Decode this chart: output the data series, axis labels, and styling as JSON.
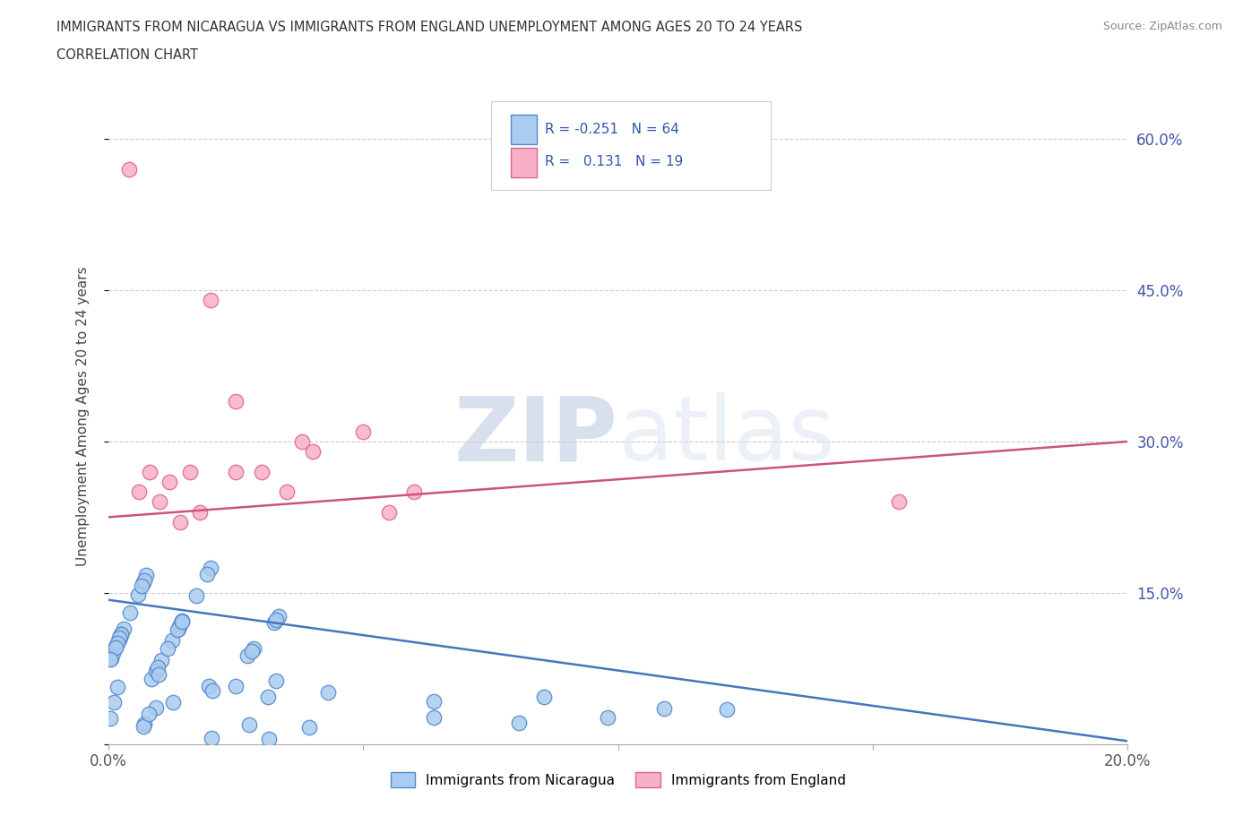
{
  "title_line1": "IMMIGRANTS FROM NICARAGUA VS IMMIGRANTS FROM ENGLAND UNEMPLOYMENT AMONG AGES 20 TO 24 YEARS",
  "title_line2": "CORRELATION CHART",
  "source": "Source: ZipAtlas.com",
  "ylabel": "Unemployment Among Ages 20 to 24 years",
  "xlim": [
    0.0,
    0.2
  ],
  "ylim": [
    0.0,
    0.65
  ],
  "yticks": [
    0.0,
    0.15,
    0.3,
    0.45,
    0.6
  ],
  "ytick_labels": [
    "",
    "15.0%",
    "30.0%",
    "45.0%",
    "60.0%"
  ],
  "xticks": [
    0.0,
    0.05,
    0.1,
    0.15,
    0.2
  ],
  "xtick_labels_show": [
    "0.0%",
    "",
    "",
    "",
    "20.0%"
  ],
  "nicaragua_color": "#aaccf0",
  "nicaragua_edge": "#5588cc",
  "england_color": "#f8b0c8",
  "england_edge": "#dd6688",
  "nicaragua_line_color": "#4477bb",
  "england_line_color": "#cc5577",
  "legend_nicaragua": "Immigrants from Nicaragua",
  "legend_england": "Immigrants from England",
  "background_color": "#ffffff",
  "nic_trend_x": [
    0.0,
    0.2
  ],
  "nic_trend_y": [
    0.143,
    0.003
  ],
  "eng_trend_x": [
    0.0,
    0.2
  ],
  "eng_trend_y": [
    0.225,
    0.3
  ]
}
